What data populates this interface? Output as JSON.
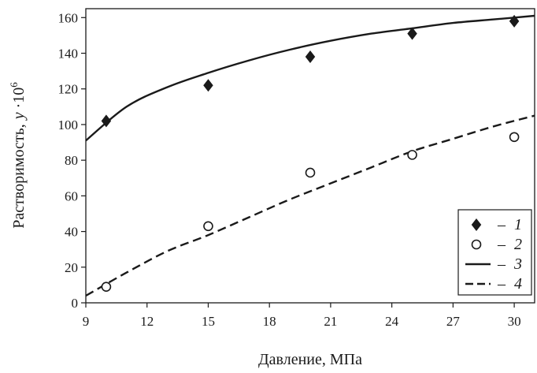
{
  "chart_data": {
    "type": "scatter",
    "xlabel": "Давление,  МПа",
    "ylabel_main": "Растворимость,",
    "ylabel_var": "y",
    "ylabel_mult": " ·10",
    "ylabel_exp": "6",
    "xlim": [
      9,
      31
    ],
    "ylim": [
      0,
      165
    ],
    "x_ticks": [
      9,
      12,
      15,
      18,
      21,
      24,
      27,
      30
    ],
    "y_ticks": [
      0,
      20,
      40,
      60,
      80,
      100,
      120,
      140,
      160
    ],
    "grid": false,
    "legend_position": "bottom-right",
    "series": [
      {
        "name": "1",
        "kind": "points",
        "marker": "diamond-filled",
        "x": [
          10,
          15,
          20,
          25,
          30
        ],
        "y": [
          102,
          122,
          138,
          151,
          158
        ]
      },
      {
        "name": "2",
        "kind": "points",
        "marker": "circle-open",
        "x": [
          10,
          15,
          20,
          25,
          30
        ],
        "y": [
          9,
          43,
          73,
          83,
          93
        ]
      },
      {
        "name": "3",
        "kind": "line",
        "dash": "solid",
        "x": [
          9,
          11,
          13,
          15,
          17,
          19,
          21,
          23,
          25,
          27,
          29,
          31
        ],
        "y": [
          91,
          110,
          121,
          129,
          136,
          142,
          147,
          151,
          154,
          157,
          159,
          161
        ]
      },
      {
        "name": "4",
        "kind": "line",
        "dash": "dashed",
        "x": [
          9,
          11,
          13,
          15,
          17,
          19,
          21,
          23,
          25,
          27,
          29,
          31
        ],
        "y": [
          4,
          17,
          29,
          38,
          48,
          58,
          67,
          76,
          85,
          92,
          99,
          105
        ]
      }
    ],
    "legend_dash": "–"
  }
}
